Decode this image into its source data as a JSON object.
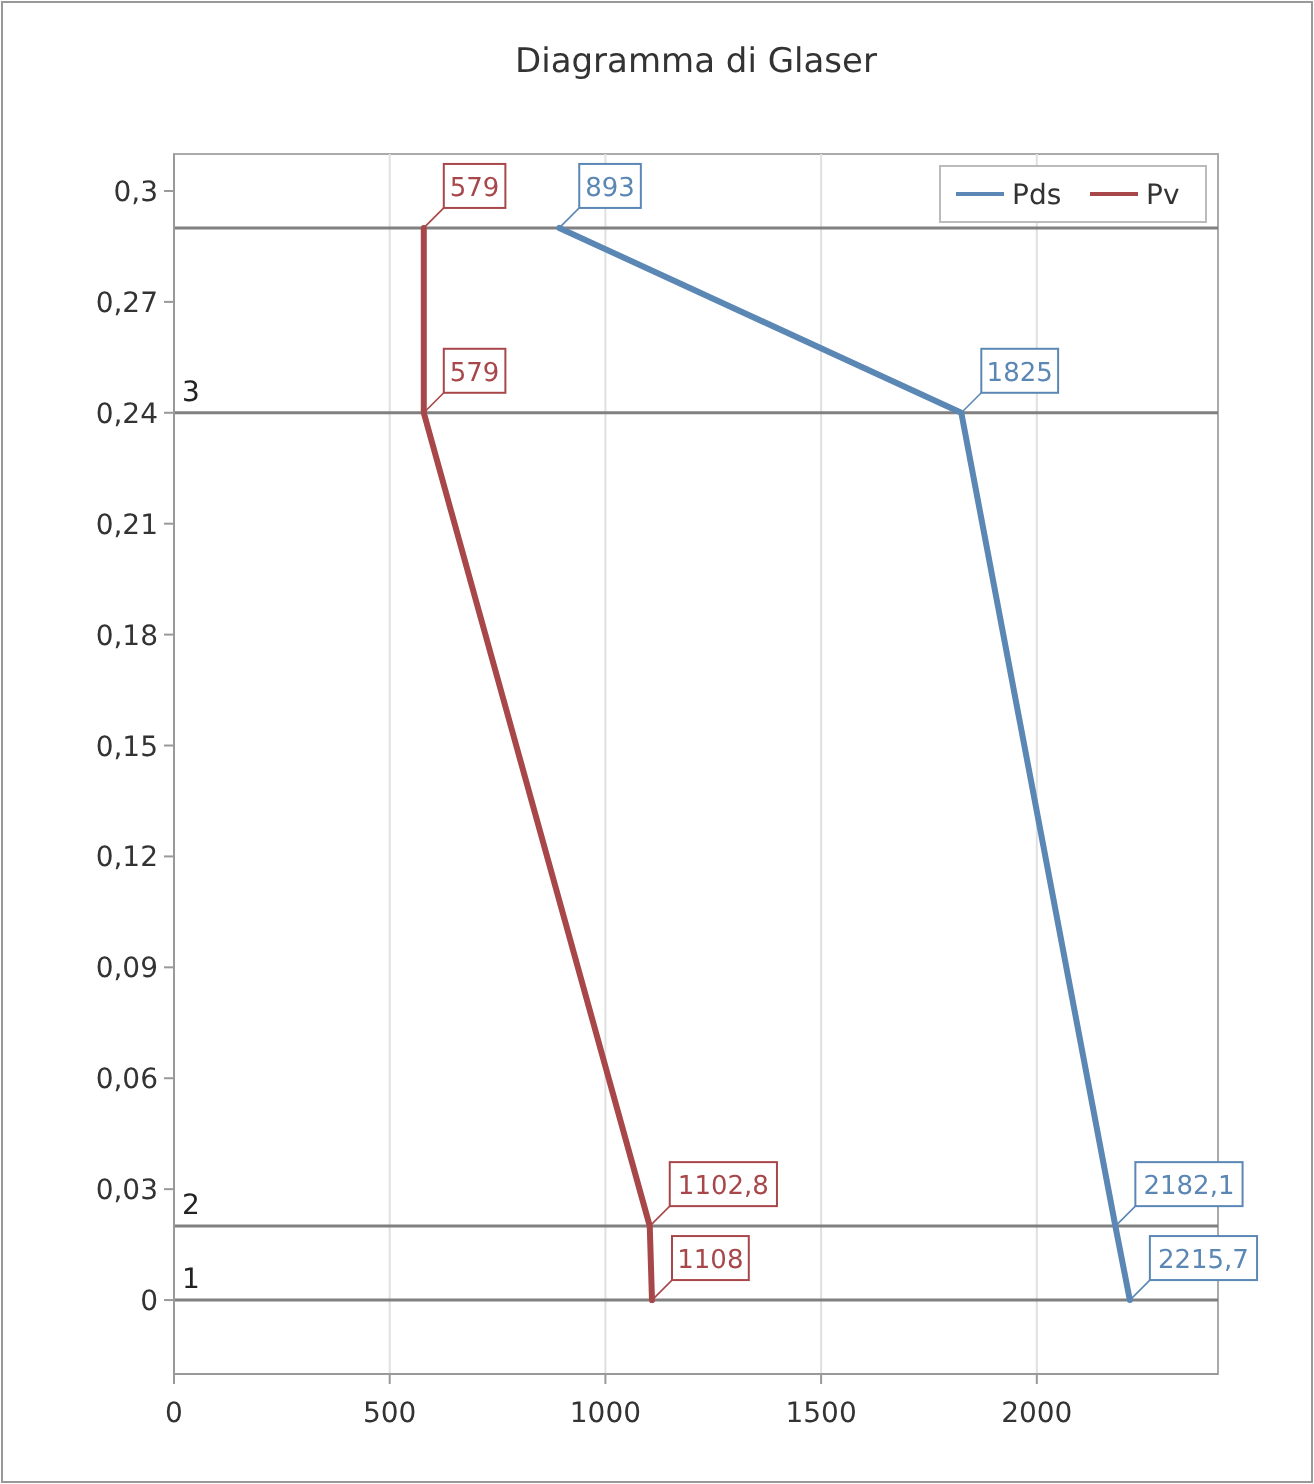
{
  "chart_data": {
    "type": "line",
    "title": "Diagramma di Glaser",
    "xlim": [
      0,
      2420
    ],
    "ylim": [
      -0.02,
      0.31
    ],
    "xticks": [
      0,
      500,
      1000,
      1500,
      2000
    ],
    "yticks": [
      0,
      {
        "value": 0.03,
        "label": "0,03"
      },
      {
        "value": 0.06,
        "label": "0,06"
      },
      {
        "value": 0.09,
        "label": "0,09"
      },
      {
        "value": 0.12,
        "label": "0,12"
      },
      {
        "value": 0.15,
        "label": "0,15"
      },
      {
        "value": 0.18,
        "label": "0,18"
      },
      {
        "value": 0.21,
        "label": "0,21"
      },
      {
        "value": 0.24,
        "label": "0,24"
      },
      {
        "value": 0.27,
        "label": "0,27"
      },
      {
        "value": 0.3,
        "label": "0,3"
      }
    ],
    "grid": "x",
    "legend": "top right",
    "marker": "none",
    "line_style": "solid",
    "series": [
      {
        "name": "Pds",
        "color": "#5b87b5",
        "x": [
          2215.7,
          2182.1,
          1825,
          893
        ],
        "values": [
          0,
          0.02,
          0.24,
          0.29
        ]
      },
      {
        "name": "Pv",
        "color": "#a8474a",
        "x": [
          1108,
          1102.8,
          579,
          579
        ],
        "values": [
          0,
          0.02,
          0.24,
          0.29
        ]
      }
    ],
    "ref_lines": [
      {
        "axis": "y",
        "value": 0,
        "color": "#808080"
      },
      {
        "axis": "y",
        "value": 0.02,
        "color": "#808080"
      },
      {
        "axis": "y",
        "value": 0.24,
        "color": "#808080"
      },
      {
        "axis": "y",
        "value": 0.29,
        "color": "#808080"
      }
    ],
    "annotations": [
      {
        "text": "2215,7",
        "x": 2215.7,
        "y": 0
      },
      {
        "text": "2182,1",
        "x": 2182.1,
        "y": 0.02
      },
      {
        "text": "1825",
        "x": 1825,
        "y": 0.24
      },
      {
        "text": "893",
        "x": 893,
        "y": 0.29
      },
      {
        "text": "1108",
        "x": 1108,
        "y": 0
      },
      {
        "text": "1102,8",
        "x": 1102.8,
        "y": 0.02
      },
      {
        "text": "579",
        "x": 579,
        "y": 0.24
      },
      {
        "text": "579",
        "x": 579,
        "y": 0.29
      },
      "1",
      "2",
      "3"
    ]
  }
}
